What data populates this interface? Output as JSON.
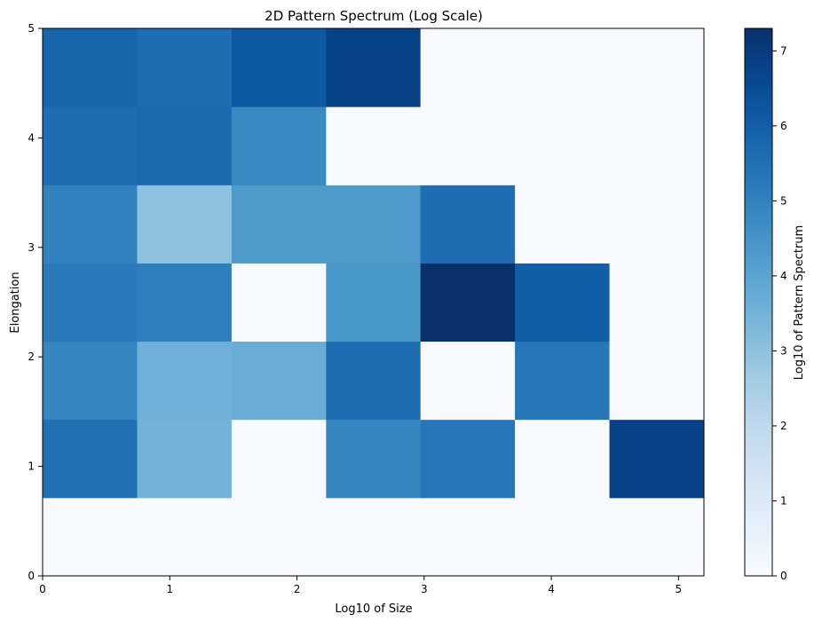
{
  "chart_data": {
    "type": "heatmap",
    "title": "2D Pattern Spectrum (Log Scale)",
    "xlabel": "Log10 of Size",
    "ylabel": "Elongation",
    "xlim": [
      0,
      5.2
    ],
    "ylim": [
      0,
      5
    ],
    "x_ticks": [
      "0",
      "1",
      "2",
      "3",
      "4",
      "5"
    ],
    "y_ticks": [
      "0",
      "1",
      "2",
      "3",
      "4",
      "5"
    ],
    "x_bin_edges": [
      0,
      0.743,
      1.486,
      2.229,
      2.971,
      3.714,
      4.457,
      5.2
    ],
    "y_bin_edges": [
      0,
      0.714,
      1.429,
      2.143,
      2.857,
      3.571,
      4.286,
      5.0
    ],
    "values_rows_bottom_to_top": [
      [
        0,
        0,
        0,
        0,
        0,
        0,
        0
      ],
      [
        5.5,
        3.5,
        0,
        4.9,
        5.3,
        0,
        6.8
      ],
      [
        4.9,
        3.6,
        3.7,
        5.6,
        0,
        5.3,
        0
      ],
      [
        5.2,
        5.1,
        0,
        4.4,
        7.3,
        6.0,
        0
      ],
      [
        5.0,
        3.0,
        4.3,
        4.3,
        5.6,
        0,
        0
      ],
      [
        5.6,
        5.7,
        4.8,
        0,
        0,
        0,
        0
      ],
      [
        5.8,
        5.6,
        6.2,
        6.8,
        0,
        0,
        0
      ]
    ],
    "colormap": "Blues",
    "colorbar": {
      "label": "Log10 of Pattern Spectrum",
      "min": 0,
      "max": 7.3,
      "ticks": [
        "0",
        "1",
        "2",
        "3",
        "4",
        "5",
        "6",
        "7"
      ]
    },
    "grid": false
  }
}
